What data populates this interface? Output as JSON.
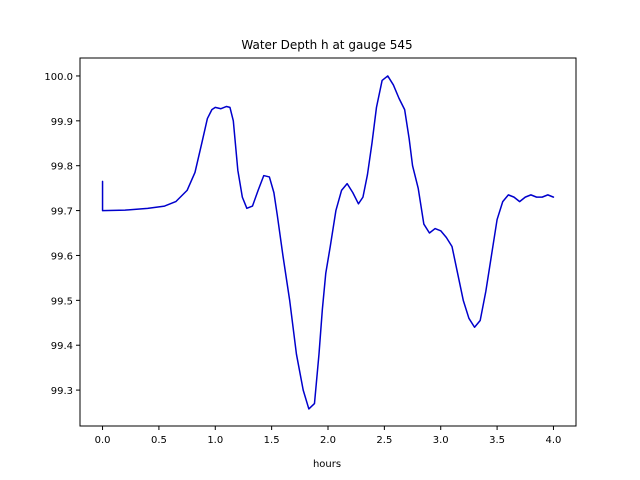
{
  "chart_data": {
    "type": "line",
    "title": "Water Depth h at gauge 545",
    "xlabel": "hours",
    "ylabel": "",
    "xlim": [
      -0.2,
      4.2
    ],
    "ylim": [
      99.22,
      100.04
    ],
    "x_ticks": [
      0.0,
      0.5,
      1.0,
      1.5,
      2.0,
      2.5,
      3.0,
      3.5,
      4.0
    ],
    "x_tick_labels": [
      "0.0",
      "0.5",
      "1.0",
      "1.5",
      "2.0",
      "2.5",
      "3.0",
      "3.5",
      "4.0"
    ],
    "y_ticks": [
      99.3,
      99.4,
      99.5,
      99.6,
      99.7,
      99.8,
      99.9,
      100.0
    ],
    "y_tick_labels": [
      "99.3",
      "99.4",
      "99.5",
      "99.6",
      "99.7",
      "99.8",
      "99.9",
      "100.0"
    ],
    "grid": false,
    "series": [
      {
        "color": "#0000cc",
        "x": [
          0.0,
          0.0,
          0.2,
          0.4,
          0.55,
          0.65,
          0.75,
          0.82,
          0.88,
          0.93,
          0.97,
          1.0,
          1.05,
          1.1,
          1.13,
          1.16,
          1.2,
          1.24,
          1.28,
          1.33,
          1.38,
          1.43,
          1.48,
          1.52,
          1.55,
          1.6,
          1.66,
          1.72,
          1.78,
          1.83,
          1.88,
          1.92,
          1.95,
          1.98,
          2.02,
          2.07,
          2.12,
          2.17,
          2.22,
          2.27,
          2.31,
          2.35,
          2.39,
          2.43,
          2.48,
          2.53,
          2.58,
          2.63,
          2.68,
          2.72,
          2.75,
          2.8,
          2.85,
          2.9,
          2.95,
          3.0,
          3.05,
          3.1,
          3.15,
          3.2,
          3.25,
          3.3,
          3.35,
          3.4,
          3.45,
          3.5,
          3.55,
          3.6,
          3.65,
          3.7,
          3.75,
          3.8,
          3.85,
          3.9,
          3.95,
          4.0
        ],
        "y": [
          99.765,
          99.7,
          99.701,
          99.705,
          99.71,
          99.72,
          99.745,
          99.785,
          99.85,
          99.905,
          99.925,
          99.93,
          99.927,
          99.932,
          99.93,
          99.9,
          99.79,
          99.73,
          99.705,
          99.71,
          99.745,
          99.778,
          99.775,
          99.74,
          99.69,
          99.6,
          99.5,
          99.38,
          99.3,
          99.258,
          99.27,
          99.38,
          99.48,
          99.56,
          99.62,
          99.7,
          99.745,
          99.76,
          99.74,
          99.715,
          99.73,
          99.78,
          99.85,
          99.93,
          99.99,
          100.0,
          99.98,
          99.95,
          99.925,
          99.86,
          99.8,
          99.75,
          99.67,
          99.65,
          99.66,
          99.655,
          99.64,
          99.62,
          99.56,
          99.5,
          99.46,
          99.44,
          99.455,
          99.52,
          99.6,
          99.68,
          99.72,
          99.735,
          99.73,
          99.72,
          99.73,
          99.735,
          99.73,
          99.73,
          99.735,
          99.73
        ]
      }
    ]
  }
}
